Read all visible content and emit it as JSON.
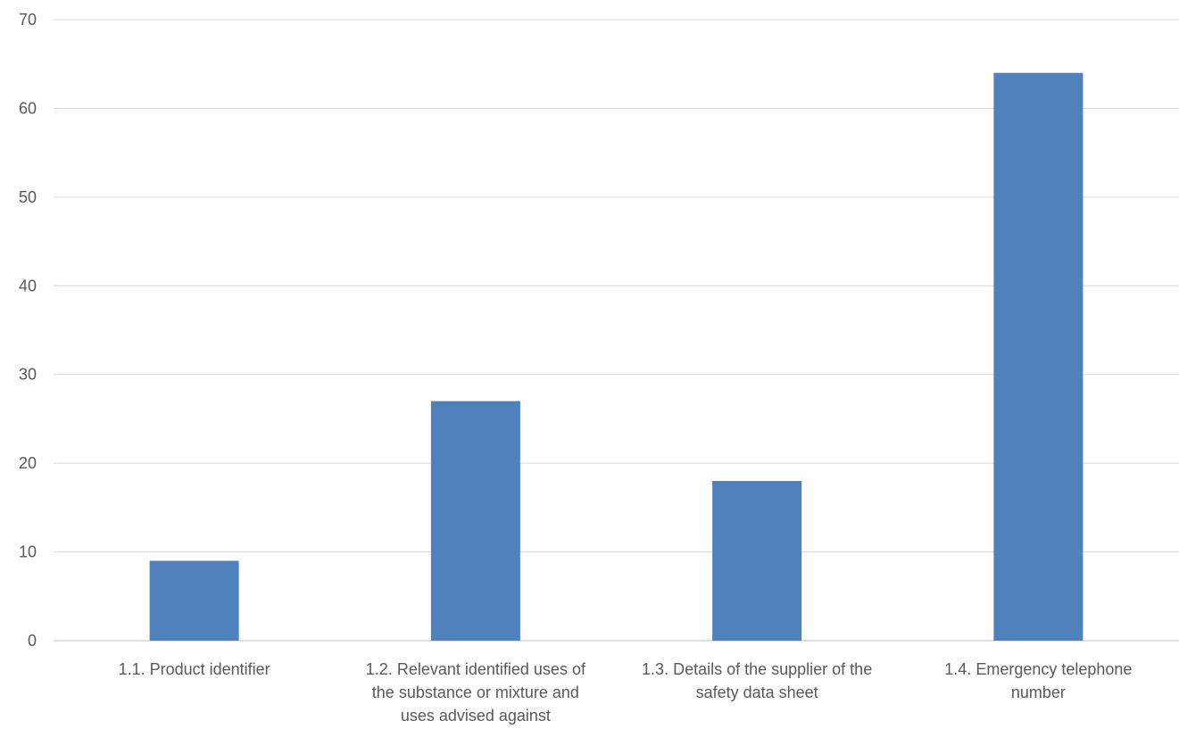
{
  "chart_data": {
    "type": "bar",
    "categories": [
      [
        "1.1. Product identifier"
      ],
      [
        "1.2. Relevant identified uses of",
        "the substance or mixture and",
        "uses advised against"
      ],
      [
        "1.3. Details of the supplier of the",
        "safety data sheet"
      ],
      [
        "1.4. Emergency telephone",
        "number"
      ]
    ],
    "values": [
      9,
      27,
      18,
      64
    ],
    "ylim": [
      0,
      70
    ],
    "yticks": [
      0,
      10,
      20,
      30,
      40,
      50,
      60,
      70
    ],
    "grid": true,
    "legend": "none",
    "bar_color": "#4f81bd",
    "title": "",
    "xlabel": "",
    "ylabel": ""
  }
}
